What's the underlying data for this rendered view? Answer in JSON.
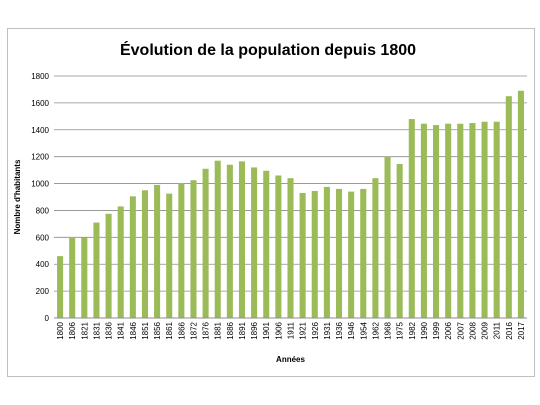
{
  "chart_data": {
    "type": "bar",
    "title": "Évolution de la population depuis 1800",
    "xlabel": "Années",
    "ylabel": "Nombre d'habitants",
    "ylim": [
      0,
      1800
    ],
    "yticks": [
      0,
      200,
      400,
      600,
      800,
      1000,
      1200,
      1400,
      1600,
      1800
    ],
    "grid": true,
    "legend": "none",
    "bar_color": "#9BBB59",
    "categories": [
      "1800",
      "1806",
      "1821",
      "1831",
      "1836",
      "1841",
      "1846",
      "1851",
      "1856",
      "1861",
      "1866",
      "1872",
      "1876",
      "1881",
      "1886",
      "1891",
      "1896",
      "1901",
      "1906",
      "1911",
      "1921",
      "1926",
      "1931",
      "1936",
      "1946",
      "1954",
      "1962",
      "1968",
      "1975",
      "1982",
      "1990",
      "1999",
      "2006",
      "2007",
      "2008",
      "2009",
      "2011",
      "2016",
      "2017"
    ],
    "values": [
      460,
      595,
      600,
      710,
      775,
      830,
      905,
      950,
      990,
      925,
      1000,
      1025,
      1110,
      1170,
      1140,
      1165,
      1120,
      1095,
      1060,
      1040,
      930,
      945,
      975,
      960,
      940,
      960,
      1040,
      1200,
      1145,
      1480,
      1445,
      1435,
      1445,
      1445,
      1450,
      1460,
      1460,
      1650,
      1690
    ]
  }
}
